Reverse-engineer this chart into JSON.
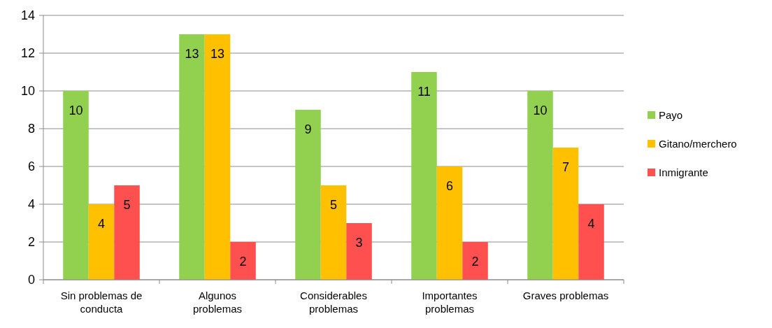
{
  "chart_data": {
    "type": "bar",
    "categories": [
      "Sin problemas de conducta",
      "Algunos problemas",
      "Considerables problemas",
      "Importantes problemas",
      "Graves problemas"
    ],
    "series": [
      {
        "name": "Payo",
        "color": "#92d050",
        "values": [
          10,
          13,
          9,
          11,
          10
        ]
      },
      {
        "name": "Gitano/merchero",
        "color": "#ffc000",
        "values": [
          4,
          13,
          5,
          6,
          7
        ]
      },
      {
        "name": "Inmigrante",
        "color": "#ff5050",
        "values": [
          5,
          2,
          3,
          2,
          4
        ]
      }
    ],
    "ylim": [
      0,
      14
    ],
    "yticks": [
      0,
      2,
      4,
      6,
      8,
      10,
      12,
      14
    ],
    "grid": "y",
    "legend": "right",
    "data_labels": true
  }
}
